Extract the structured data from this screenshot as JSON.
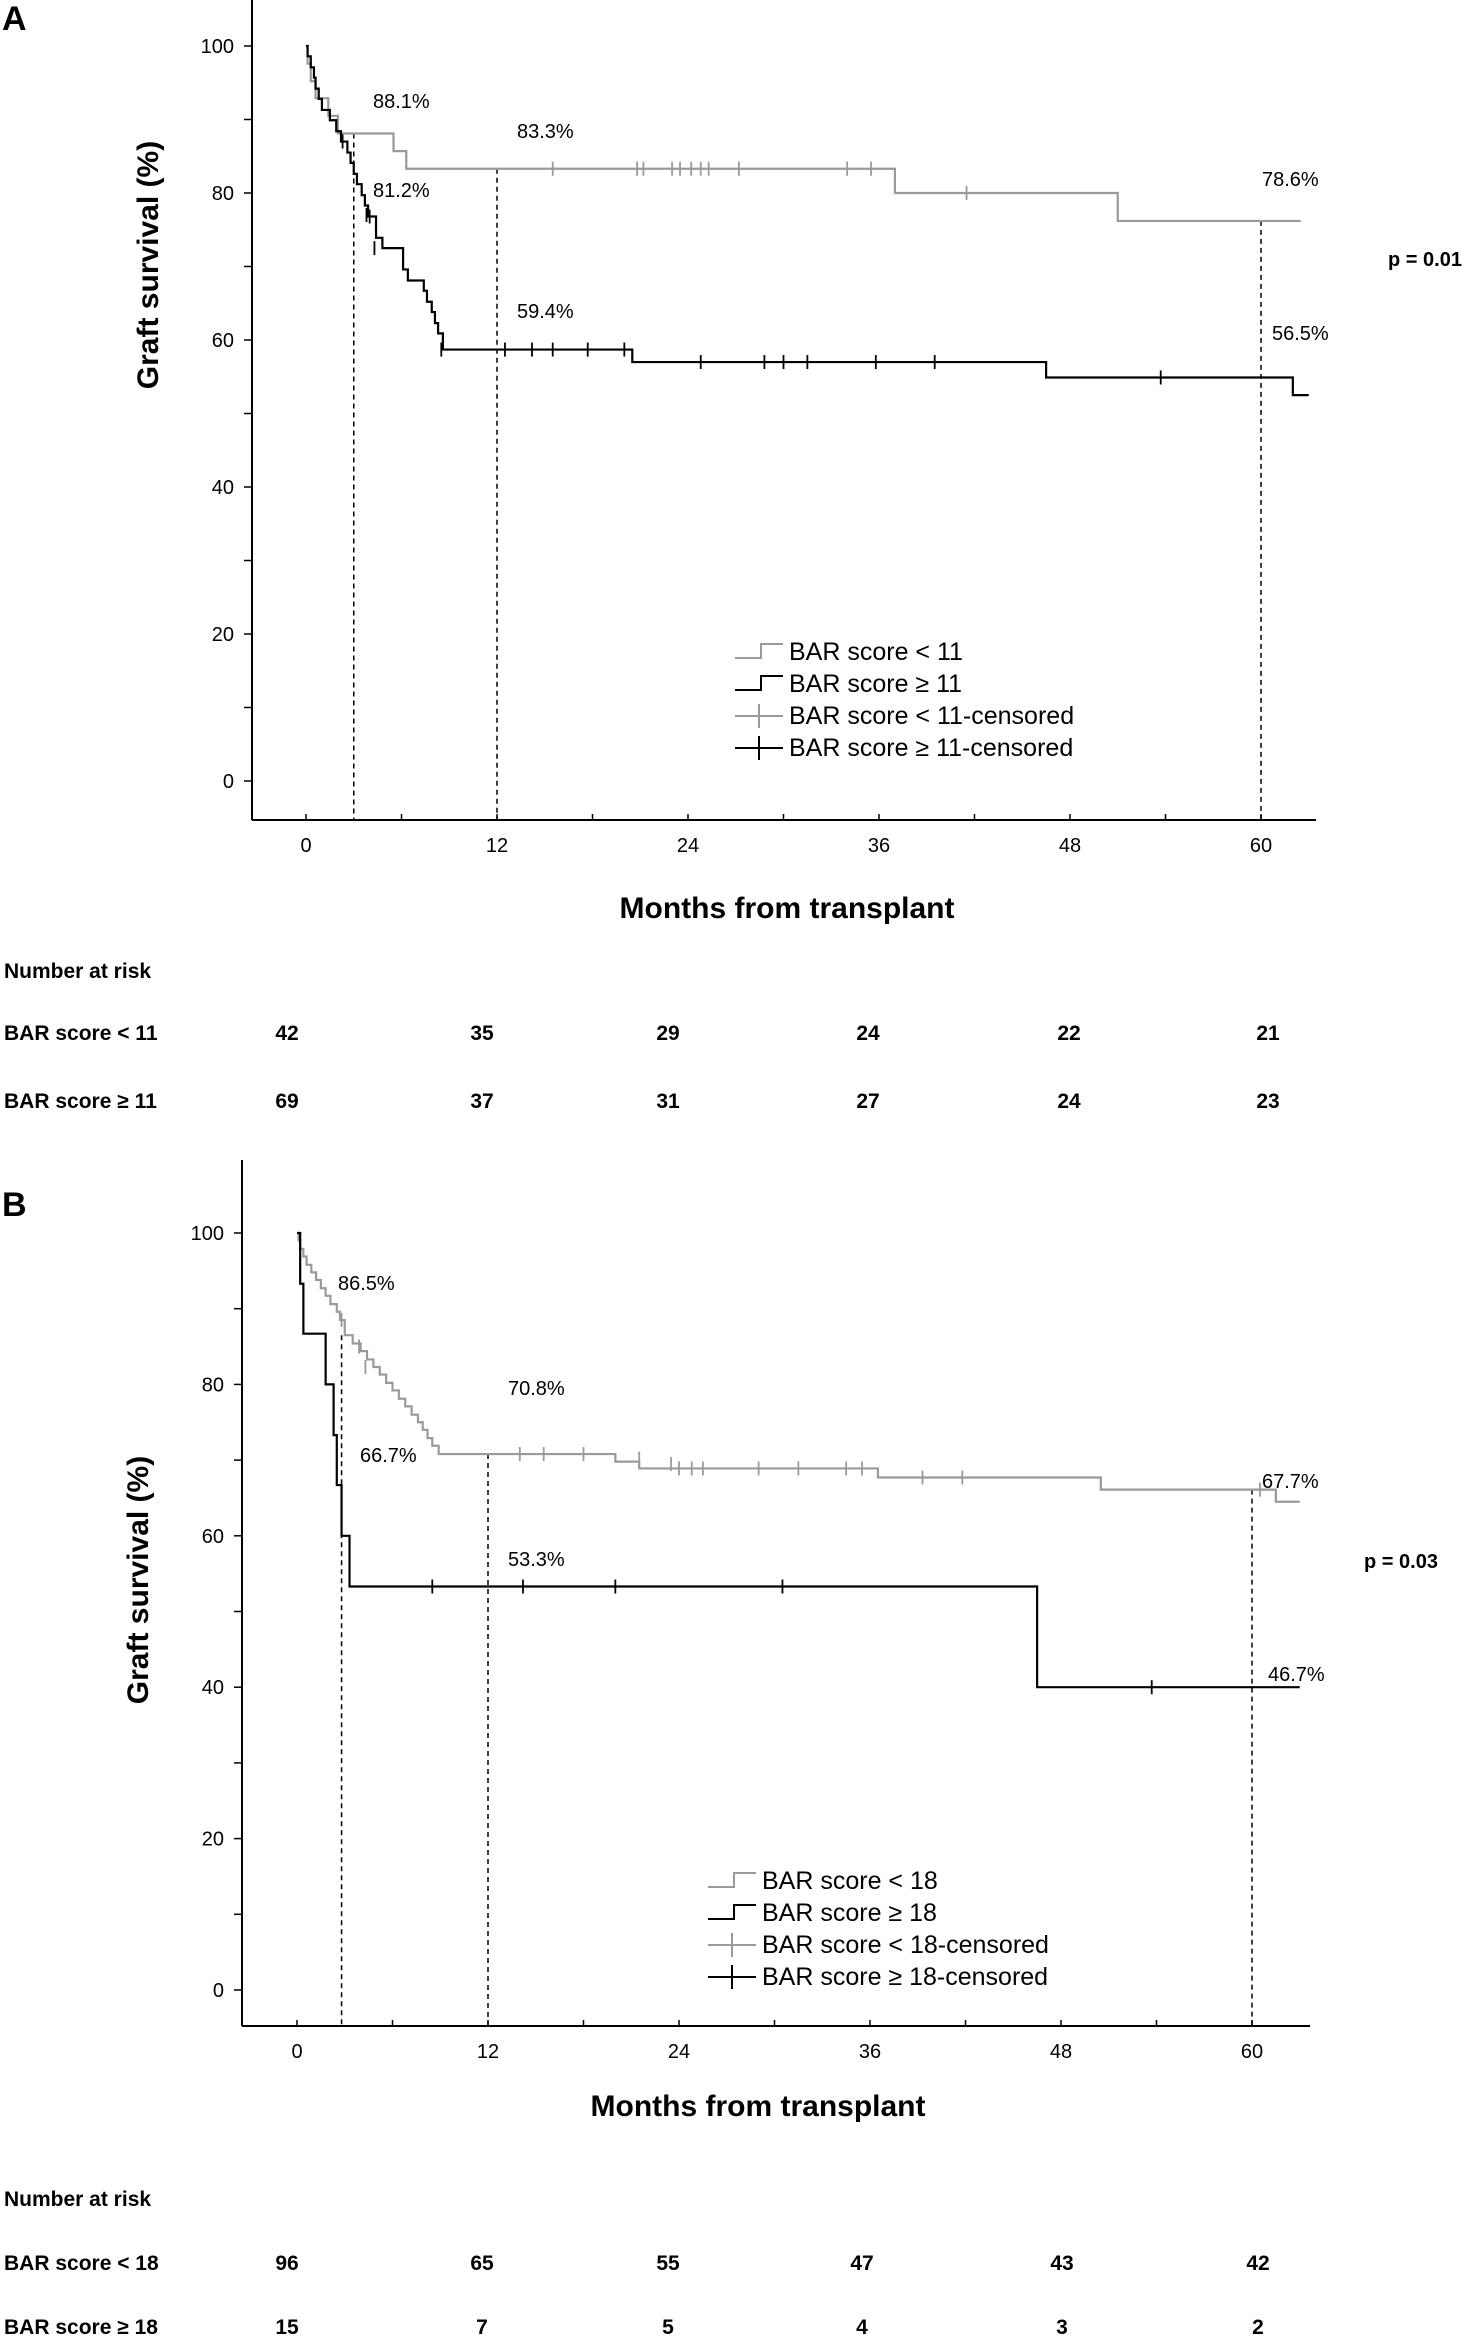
{
  "chart_data": [
    {
      "panel_label": "A",
      "type": "line",
      "ylabel": "Graft survival (%)",
      "xlabel": "Months from transplant",
      "xlim": [
        -3,
        63
      ],
      "ylim": [
        -5,
        105
      ],
      "xticks": [
        0,
        12,
        24,
        36,
        48,
        60
      ],
      "yticks": [
        0,
        20,
        40,
        60,
        80,
        100
      ],
      "p_value": "p = 0.01",
      "legend": {
        "placement": "bottom-right",
        "entries": [
          "BAR score < 11",
          "BAR score ≥ 11",
          "BAR score < 11-censored",
          "BAR score ≥ 11-censored"
        ]
      },
      "series": [
        {
          "name": "BAR score < 11",
          "color": "#9a9a9a",
          "steps": [
            [
              0,
              100
            ],
            [
              0.1,
              97.6
            ],
            [
              0.3,
              95.2
            ],
            [
              0.6,
              92.9
            ],
            [
              1.4,
              90.5
            ],
            [
              2.0,
              88.1
            ],
            [
              5.5,
              85.7
            ],
            [
              6.3,
              83.3
            ],
            [
              37.0,
              80.0
            ],
            [
              51.0,
              76.2
            ],
            [
              62.5,
              76.2
            ]
          ],
          "censored": [
            [
              15.5,
              83.3
            ],
            [
              20.8,
              83.3
            ],
            [
              21.2,
              83.3
            ],
            [
              23.0,
              83.3
            ],
            [
              23.5,
              83.3
            ],
            [
              24.2,
              83.3
            ],
            [
              24.8,
              83.3
            ],
            [
              25.3,
              83.3
            ],
            [
              27.2,
              83.3
            ],
            [
              34.0,
              83.3
            ],
            [
              35.5,
              83.3
            ],
            [
              41.5,
              80.0
            ]
          ]
        },
        {
          "name": "BAR score ≥ 11",
          "color": "#000000",
          "steps": [
            [
              0,
              100
            ],
            [
              0.1,
              98.6
            ],
            [
              0.3,
              97.1
            ],
            [
              0.5,
              95.7
            ],
            [
              0.6,
              94.2
            ],
            [
              0.8,
              92.8
            ],
            [
              1.0,
              91.3
            ],
            [
              1.5,
              89.9
            ],
            [
              1.9,
              88.4
            ],
            [
              2.2,
              87.0
            ],
            [
              2.6,
              85.5
            ],
            [
              2.8,
              84.1
            ],
            [
              3.0,
              82.6
            ],
            [
              3.2,
              81.2
            ],
            [
              3.5,
              79.7
            ],
            [
              3.7,
              78.3
            ],
            [
              3.9,
              76.8
            ],
            [
              4.4,
              73.9
            ],
            [
              4.8,
              72.5
            ],
            [
              6.1,
              69.6
            ],
            [
              6.4,
              68.1
            ],
            [
              7.4,
              66.7
            ],
            [
              7.6,
              65.2
            ],
            [
              7.9,
              63.8
            ],
            [
              8.1,
              62.3
            ],
            [
              8.3,
              60.9
            ],
            [
              8.6,
              58.7
            ],
            [
              20.5,
              57.0
            ],
            [
              46.5,
              54.9
            ],
            [
              62,
              52.5
            ],
            [
              63,
              52.5
            ]
          ],
          "censored": [
            [
              2.3,
              87.0
            ],
            [
              3.8,
              77.0
            ],
            [
              4.0,
              76.8
            ],
            [
              4.3,
              72.5
            ],
            [
              8.5,
              58.7
            ],
            [
              12.5,
              58.7
            ],
            [
              14.2,
              58.7
            ],
            [
              15.5,
              58.7
            ],
            [
              17.7,
              58.7
            ],
            [
              20.0,
              58.7
            ],
            [
              24.8,
              57.0
            ],
            [
              28.8,
              57.0
            ],
            [
              30.0,
              57.0
            ],
            [
              31.5,
              57.0
            ],
            [
              35.8,
              57.0
            ],
            [
              39.5,
              57.0
            ],
            [
              53.7,
              54.9
            ]
          ]
        }
      ],
      "reference_lines_x": [
        3,
        12,
        60
      ],
      "annotations": [
        "88.1%",
        "83.3%",
        "81.2%",
        "59.4%",
        "78.6%",
        "56.5%"
      ],
      "risk_table": {
        "title": "Number at risk",
        "rows": [
          {
            "name": "BAR score < 11",
            "values": [
              "42",
              "35",
              "29",
              "24",
              "22",
              "21"
            ]
          },
          {
            "name": "BAR score ≥ 11",
            "values": [
              "69",
              "37",
              "31",
              "27",
              "24",
              "23"
            ]
          }
        ]
      }
    },
    {
      "panel_label": "B",
      "type": "line",
      "ylabel": "Graft survival (%)",
      "xlabel": "Months from transplant",
      "xlim": [
        -3,
        63
      ],
      "ylim": [
        -5,
        105
      ],
      "xticks": [
        0,
        12,
        24,
        36,
        48,
        60
      ],
      "yticks": [
        0,
        20,
        40,
        60,
        80,
        100
      ],
      "p_value": "p = 0.03",
      "legend": {
        "placement": "bottom-right",
        "entries": [
          "BAR score < 18",
          "BAR score ≥ 18",
          "BAR score < 18-censored",
          "BAR score ≥ 18-censored"
        ]
      },
      "series": [
        {
          "name": "BAR score < 18",
          "color": "#9a9a9a",
          "steps": [
            [
              0,
              100
            ],
            [
              0.1,
              99.0
            ],
            [
              0.2,
              97.9
            ],
            [
              0.4,
              96.9
            ],
            [
              0.6,
              95.8
            ],
            [
              0.9,
              94.8
            ],
            [
              1.2,
              93.8
            ],
            [
              1.5,
              92.7
            ],
            [
              1.8,
              91.7
            ],
            [
              2.1,
              90.6
            ],
            [
              2.5,
              89.6
            ],
            [
              2.7,
              88.5
            ],
            [
              3.0,
              86.5
            ],
            [
              3.5,
              85.4
            ],
            [
              4.0,
              84.4
            ],
            [
              4.4,
              83.3
            ],
            [
              4.8,
              82.3
            ],
            [
              5.2,
              81.3
            ],
            [
              5.6,
              80.2
            ],
            [
              6.0,
              79.2
            ],
            [
              6.4,
              78.1
            ],
            [
              6.8,
              77.1
            ],
            [
              7.2,
              76.0
            ],
            [
              7.6,
              75.0
            ],
            [
              7.9,
              74.0
            ],
            [
              8.2,
              72.9
            ],
            [
              8.5,
              71.9
            ],
            [
              8.9,
              70.8
            ],
            [
              20.0,
              69.8
            ],
            [
              21.5,
              68.9
            ],
            [
              36.5,
              67.7
            ],
            [
              50.5,
              66.1
            ],
            [
              61.5,
              64.5
            ],
            [
              63,
              64.5
            ]
          ],
          "censored": [
            [
              2.8,
              88.5
            ],
            [
              3.9,
              85.0
            ],
            [
              4.3,
              82.3
            ],
            [
              14.0,
              70.8
            ],
            [
              15.5,
              70.8
            ],
            [
              18.0,
              70.8
            ],
            [
              21.5,
              70.2
            ],
            [
              23.5,
              69.5
            ],
            [
              24.0,
              68.9
            ],
            [
              24.8,
              68.9
            ],
            [
              25.5,
              68.9
            ],
            [
              29.0,
              68.9
            ],
            [
              31.5,
              68.9
            ],
            [
              34.5,
              68.9
            ],
            [
              35.5,
              68.9
            ],
            [
              39.3,
              67.7
            ],
            [
              41.8,
              67.7
            ],
            [
              60.5,
              66.1
            ]
          ]
        },
        {
          "name": "BAR score ≥ 18",
          "color": "#000000",
          "steps": [
            [
              0,
              100
            ],
            [
              0.2,
              93.3
            ],
            [
              0.4,
              86.7
            ],
            [
              1.8,
              80.0
            ],
            [
              2.3,
              73.3
            ],
            [
              2.5,
              66.7
            ],
            [
              2.8,
              60.0
            ],
            [
              3.3,
              53.3
            ],
            [
              46.5,
              40.0
            ],
            [
              63,
              40.0
            ]
          ],
          "censored": [
            [
              8.5,
              53.3
            ],
            [
              14.2,
              53.3
            ],
            [
              20.0,
              53.3
            ],
            [
              30.5,
              53.3
            ],
            [
              53.7,
              40.0
            ]
          ]
        }
      ],
      "reference_lines_x": [
        2.8,
        12,
        60
      ],
      "annotations": [
        "86.5%",
        "66.7%",
        "70.8%",
        "53.3%",
        "67.7%",
        "46.7%"
      ],
      "risk_table": {
        "title": "Number at risk",
        "rows": [
          {
            "name": "BAR score < 18",
            "values": [
              "96",
              "65",
              "55",
              "47",
              "43",
              "42"
            ]
          },
          {
            "name": "BAR score ≥ 18",
            "values": [
              "15",
              "7",
              "5",
              "4",
              "3",
              "2"
            ]
          }
        ]
      }
    }
  ]
}
